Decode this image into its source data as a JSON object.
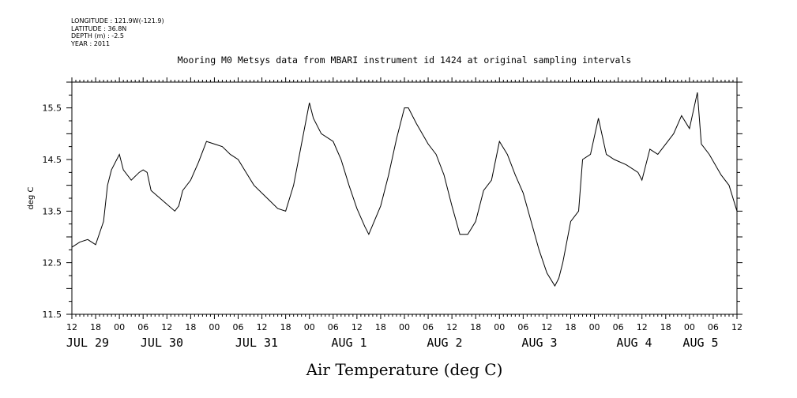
{
  "meta": {
    "longitude": "LONGITUDE : 121.9W(-121.9)",
    "latitude": "LATITUDE : 36.8N",
    "depth": "DEPTH (m) : -2.5",
    "year": "YEAR : 2011"
  },
  "chart_data": {
    "type": "line",
    "title": "Mooring M0 Metsys data from MBARI instrument id 1424 at original sampling intervals",
    "xlabel": "Air Temperature (deg C)",
    "ylabel": "deg C",
    "ylim": [
      11.5,
      16.0
    ],
    "yticks": [
      11.5,
      12.5,
      13.5,
      14.5,
      15.5
    ],
    "xlim": [
      "2011-07-29T12:00",
      "2011-08-05T12:00"
    ],
    "xticks": [
      "12",
      "18",
      "00",
      "06",
      "12",
      "18",
      "00",
      "06",
      "12",
      "18",
      "00",
      "06",
      "12",
      "18",
      "00",
      "06",
      "12",
      "18",
      "00",
      "06",
      "12",
      "18",
      "00",
      "06",
      "12",
      "18",
      "00",
      "06",
      "12"
    ],
    "day_labels": [
      "JUL 29",
      "JUL 30",
      "JUL 31",
      "AUG  1",
      "AUG  2",
      "AUG  3",
      "AUG  4",
      "AUG  5"
    ],
    "grid": false,
    "series": [
      {
        "x": [
          "2011-07-29T12:00",
          "2011-07-29T14:00",
          "2011-07-29T16:00",
          "2011-07-29T18:00",
          "2011-07-29T20:00",
          "2011-07-29T21:00",
          "2011-07-29T22:00",
          "2011-07-30T00:00",
          "2011-07-30T01:00",
          "2011-07-30T03:00",
          "2011-07-30T05:00",
          "2011-07-30T06:00",
          "2011-07-30T07:00",
          "2011-07-30T08:00",
          "2011-07-30T14:00",
          "2011-07-30T15:00",
          "2011-07-30T16:00",
          "2011-07-30T18:00",
          "2011-07-30T20:00",
          "2011-07-30T22:00",
          "2011-07-31T00:00",
          "2011-07-31T02:00",
          "2011-07-31T04:00",
          "2011-07-31T06:00",
          "2011-07-31T08:00",
          "2011-07-31T10:00",
          "2011-07-31T12:00",
          "2011-07-31T14:00",
          "2011-07-31T16:00",
          "2011-07-31T18:00",
          "2011-07-31T20:00",
          "2011-07-31T22:00",
          "2011-08-01T00:00",
          "2011-08-01T01:00",
          "2011-08-01T03:00",
          "2011-08-01T06:00",
          "2011-08-01T08:00",
          "2011-08-01T10:00",
          "2011-08-01T12:00",
          "2011-08-01T14:00",
          "2011-08-01T15:00",
          "2011-08-01T18:00",
          "2011-08-01T20:00",
          "2011-08-01T22:00",
          "2011-08-02T00:00",
          "2011-08-02T01:00",
          "2011-08-02T03:00",
          "2011-08-02T06:00",
          "2011-08-02T08:00",
          "2011-08-02T10:00",
          "2011-08-02T12:00",
          "2011-08-02T14:00",
          "2011-08-02T16:00",
          "2011-08-02T18:00",
          "2011-08-02T20:00",
          "2011-08-02T22:00",
          "2011-08-03T00:00",
          "2011-08-03T02:00",
          "2011-08-03T04:00",
          "2011-08-03T06:00",
          "2011-08-03T08:00",
          "2011-08-03T10:00",
          "2011-08-03T12:00",
          "2011-08-03T14:00",
          "2011-08-03T15:00",
          "2011-08-03T16:00",
          "2011-08-03T18:00",
          "2011-08-03T20:00",
          "2011-08-03T21:00",
          "2011-08-03T23:00",
          "2011-08-04T01:00",
          "2011-08-04T03:00",
          "2011-08-04T05:00",
          "2011-08-04T08:00",
          "2011-08-04T11:00",
          "2011-08-04T12:00",
          "2011-08-04T14:00",
          "2011-08-04T16:00",
          "2011-08-04T18:00",
          "2011-08-04T20:00",
          "2011-08-04T22:00",
          "2011-08-05T00:00",
          "2011-08-05T02:00",
          "2011-08-05T03:00",
          "2011-08-05T05:00",
          "2011-08-05T08:00",
          "2011-08-05T10:00",
          "2011-08-05T12:00"
        ],
        "values": [
          12.8,
          12.9,
          12.95,
          12.85,
          13.3,
          14.0,
          14.3,
          14.6,
          14.3,
          14.1,
          14.25,
          14.3,
          14.25,
          13.9,
          13.5,
          13.6,
          13.9,
          14.1,
          14.45,
          14.85,
          14.8,
          14.75,
          14.6,
          14.5,
          14.25,
          14.0,
          13.85,
          13.7,
          13.55,
          13.5,
          14.0,
          14.8,
          15.6,
          15.3,
          15.0,
          14.85,
          14.5,
          14.0,
          13.55,
          13.2,
          13.05,
          13.6,
          14.2,
          14.9,
          15.5,
          15.5,
          15.2,
          14.8,
          14.6,
          14.2,
          13.6,
          13.05,
          13.05,
          13.3,
          13.9,
          14.1,
          14.85,
          14.6,
          14.2,
          13.85,
          13.3,
          12.75,
          12.3,
          12.05,
          12.2,
          12.5,
          13.3,
          13.5,
          14.5,
          14.6,
          15.3,
          14.6,
          14.5,
          14.4,
          14.25,
          14.1,
          14.7,
          14.6,
          14.8,
          15.0,
          15.35,
          15.1,
          15.8,
          14.8,
          14.6,
          14.2,
          14.0,
          13.5
        ]
      }
    ]
  }
}
